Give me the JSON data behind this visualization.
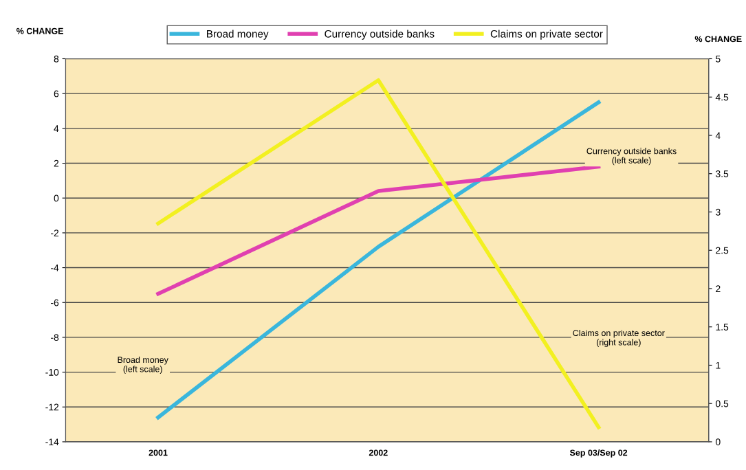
{
  "chart_data": {
    "type": "line",
    "ylabel": "% CHANGE",
    "y2label": "% CHANGE",
    "categories": [
      "2001",
      "2002",
      "Sep 03/Sep 02"
    ],
    "series": [
      {
        "name": "Broad money",
        "color": "#3ab6dc",
        "values": [
          -12.6,
          -2.8,
          5.5
        ]
      },
      {
        "name": "Currency outside banks",
        "color": "#e040b0",
        "values": [
          -5.5,
          0.4,
          1.8
        ]
      },
      {
        "name": "Claims on private sector",
        "color": "#f2f020",
        "values": [
          2.85,
          4.72,
          0.19
        ],
        "axis": "y2"
      }
    ],
    "ylim": [
      -14,
      8
    ],
    "yticks": [
      -14,
      -12,
      -10,
      -8,
      -6,
      -4,
      -2,
      0,
      2,
      4,
      6,
      8
    ],
    "y2lim": [
      0,
      5
    ],
    "y2ticks": [
      0,
      0.5,
      1,
      1.5,
      2,
      2.5,
      3,
      3.5,
      4,
      4.5,
      5
    ],
    "grid": "y",
    "legend": "top",
    "marker": "none",
    "line_style": "solid",
    "annotations": [
      "Broad money\n(left scale)",
      "Currency outside banks\n(left scale)",
      "Claims on private sector\n(right scale)"
    ]
  }
}
